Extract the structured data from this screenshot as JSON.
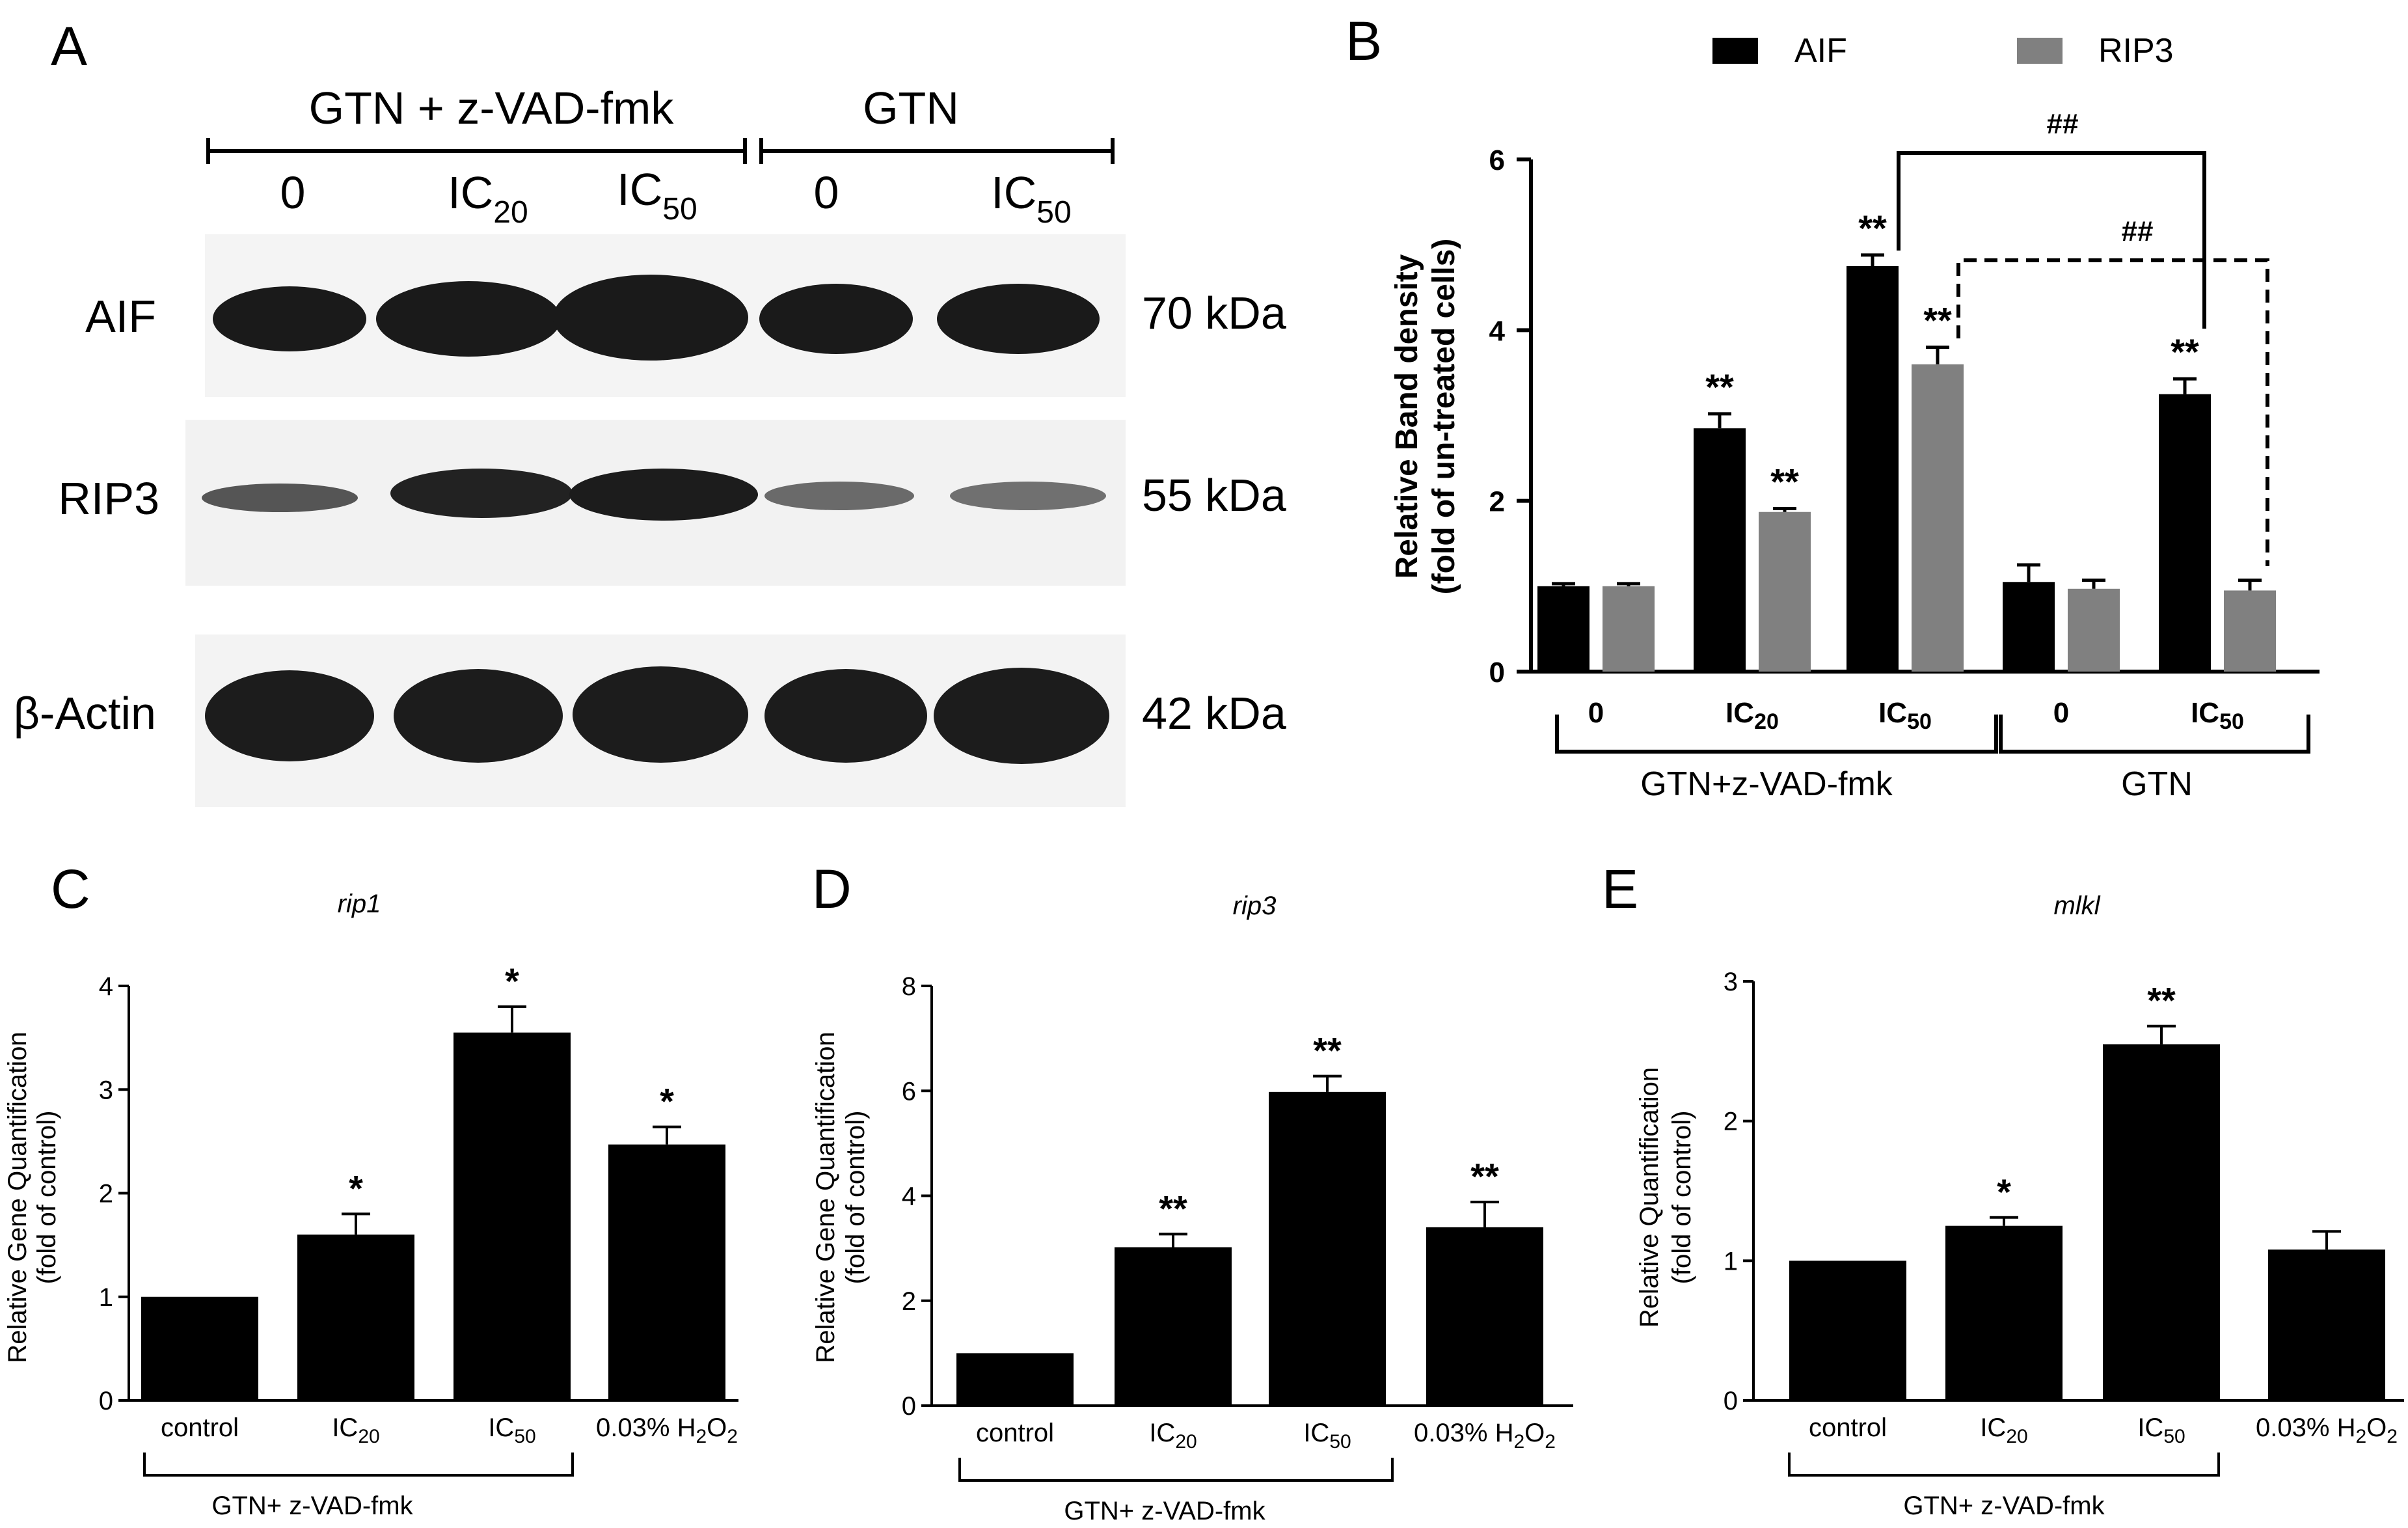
{
  "panels": {
    "a": "A",
    "b": "B",
    "c": "C",
    "d": "D",
    "e": "E"
  },
  "blot": {
    "group_labels": [
      "GTN + z-VAD-fmk",
      "GTN"
    ],
    "lanes": [
      {
        "main": "0",
        "sub": ""
      },
      {
        "main": "IC",
        "sub": "20"
      },
      {
        "main": "IC",
        "sub": "50"
      },
      {
        "main": "0",
        "sub": ""
      },
      {
        "main": "IC",
        "sub": "50"
      }
    ],
    "proteins": [
      {
        "name": "AIF",
        "size": "70 kDa"
      },
      {
        "name": "RIP3",
        "size": "55 kDa"
      },
      {
        "name": "β-Actin",
        "size": "42 kDa"
      }
    ]
  },
  "chart_data": [
    {
      "panel": "B",
      "type": "bar",
      "title": "",
      "ylabel": [
        "Relative Band density",
        "(fold of un-treated cells)"
      ],
      "ylim": [
        0,
        6
      ],
      "yticks": [
        "0",
        "2",
        "4",
        "6"
      ],
      "categories": [
        "0",
        "IC20",
        "IC50",
        "0",
        "IC50"
      ],
      "category_labels": [
        {
          "main": "0",
          "sub": ""
        },
        {
          "main": "IC",
          "sub": "20"
        },
        {
          "main": "IC",
          "sub": "50"
        },
        {
          "main": "0",
          "sub": ""
        },
        {
          "main": "IC",
          "sub": "50"
        }
      ],
      "groups": [
        "GTN+z-VAD-fmk",
        "GTN"
      ],
      "legend": [
        "AIF",
        "RIP3"
      ],
      "series": [
        {
          "name": "AIF",
          "color": "#000000",
          "values": [
            1.0,
            2.85,
            4.75,
            1.05,
            3.25
          ],
          "errors": [
            0.03,
            0.17,
            0.13,
            0.2,
            0.18
          ],
          "marks": [
            "",
            "**",
            "**",
            "",
            "**"
          ]
        },
        {
          "name": "RIP3",
          "color": "#808080",
          "values": [
            1.0,
            1.87,
            3.6,
            0.97,
            0.95
          ],
          "errors": [
            0.03,
            0.04,
            0.2,
            0.1,
            0.12
          ],
          "marks": [
            "",
            "**",
            "**",
            "",
            ""
          ]
        }
      ],
      "annotations": [
        "##",
        "##"
      ]
    },
    {
      "panel": "C",
      "type": "bar",
      "title": "rip1",
      "ylabel": [
        "Relative Gene Quantification",
        "(fold of control)"
      ],
      "ylim": [
        0,
        4
      ],
      "yticks": [
        "0",
        "1",
        "2",
        "3",
        "4"
      ],
      "category_labels": [
        {
          "main": "control",
          "sub": "",
          "post": ""
        },
        {
          "main": "IC",
          "sub": "20",
          "post": ""
        },
        {
          "main": "IC",
          "sub": "50",
          "post": ""
        },
        {
          "main": "0.03% H",
          "sub": "2",
          "post": "O",
          "sub2": "2"
        }
      ],
      "values": [
        1.0,
        1.6,
        3.55,
        2.47
      ],
      "errors": [
        0,
        0.2,
        0.25,
        0.17
      ],
      "marks": [
        "",
        "*",
        "*",
        "*"
      ],
      "group": "GTN+ z-VAD-fmk"
    },
    {
      "panel": "D",
      "type": "bar",
      "title": "rip3",
      "ylabel": [
        "Relative Gene Quantification",
        "(fold of control)"
      ],
      "ylim": [
        0,
        8
      ],
      "yticks": [
        "0",
        "2",
        "4",
        "6",
        "8"
      ],
      "category_labels": [
        {
          "main": "control",
          "sub": "",
          "post": ""
        },
        {
          "main": "IC",
          "sub": "20",
          "post": ""
        },
        {
          "main": "IC",
          "sub": "50",
          "post": ""
        },
        {
          "main": "0.03% H",
          "sub": "2",
          "post": "O",
          "sub2": "2"
        }
      ],
      "values": [
        1.0,
        3.02,
        5.98,
        3.4
      ],
      "errors": [
        0,
        0.25,
        0.3,
        0.48
      ],
      "marks": [
        "",
        "**",
        "**",
        "**"
      ],
      "group": "GTN+ z-VAD-fmk"
    },
    {
      "panel": "E",
      "type": "bar",
      "title": "mlkl",
      "ylabel": [
        "Relative Quantification",
        "(fold of control)"
      ],
      "ylim": [
        0,
        3
      ],
      "yticks": [
        "0",
        "1",
        "2",
        "3"
      ],
      "category_labels": [
        {
          "main": "control",
          "sub": "",
          "post": ""
        },
        {
          "main": "IC",
          "sub": "20",
          "post": ""
        },
        {
          "main": "IC",
          "sub": "50",
          "post": ""
        },
        {
          "main": "0.03% H",
          "sub": "2",
          "post": "O",
          "sub2": "2"
        }
      ],
      "values": [
        1.0,
        1.25,
        2.55,
        1.08
      ],
      "errors": [
        0,
        0.06,
        0.13,
        0.13
      ],
      "marks": [
        "",
        "*",
        "**",
        ""
      ],
      "group": "GTN+ z-VAD-fmk"
    }
  ]
}
